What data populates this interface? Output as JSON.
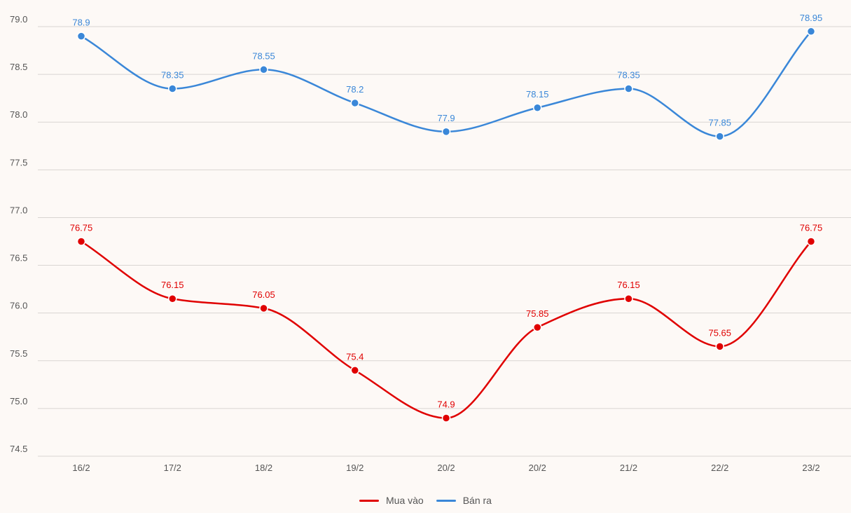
{
  "chart_data": {
    "type": "line",
    "categories": [
      "16/2",
      "17/2",
      "18/2",
      "19/2",
      "20/2",
      "20/2",
      "21/2",
      "22/2",
      "23/2"
    ],
    "yticks": [
      "79.0",
      "78.5",
      "78.0",
      "77.5",
      "77.0",
      "76.5",
      "76.0",
      "75.5",
      "75.0",
      "74.5"
    ],
    "ylim": [
      74.5,
      79.0
    ],
    "grid": true,
    "legend_position": "bottom-center",
    "series": [
      {
        "name": "Mua vào",
        "color": "#e00000",
        "values": [
          76.75,
          76.15,
          76.05,
          75.4,
          74.9,
          75.85,
          76.15,
          75.65,
          76.75
        ],
        "labels": [
          "76.75",
          "76.15",
          "76.05",
          "75.4",
          "74.9",
          "75.85",
          "76.15",
          "75.65",
          "76.75"
        ]
      },
      {
        "name": "Bán ra",
        "color": "#3a87d8",
        "values": [
          78.9,
          78.35,
          78.55,
          78.2,
          77.9,
          78.15,
          78.35,
          77.85,
          78.95
        ],
        "labels": [
          "78.9",
          "78.35",
          "78.55",
          "78.2",
          "77.9",
          "78.15",
          "78.35",
          "77.85",
          "78.95"
        ]
      }
    ]
  },
  "legend": {
    "items": [
      {
        "label": "Mua vào",
        "color": "#e00000"
      },
      {
        "label": "Bán ra",
        "color": "#3a87d8"
      }
    ]
  }
}
